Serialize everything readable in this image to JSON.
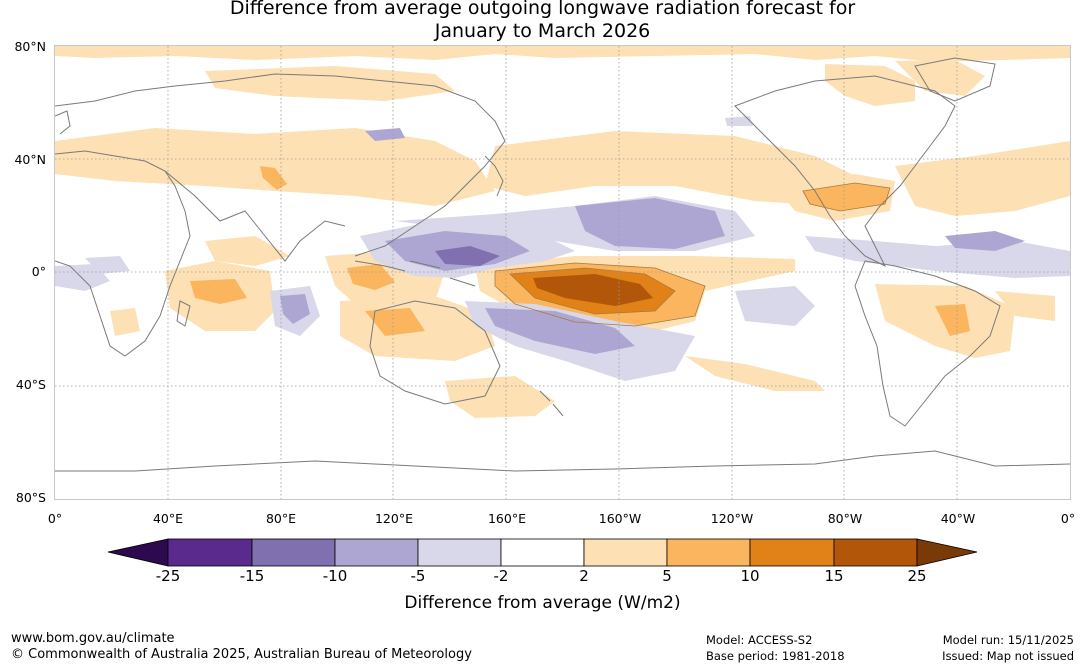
{
  "title": {
    "line1": "Difference from average outgoing longwave radiation forecast for",
    "line2": "January to March 2026"
  },
  "map": {
    "latitude_labels": [
      "80°N",
      "40°N",
      "0°",
      "40°S",
      "80°S"
    ],
    "longitude_labels": [
      "0°",
      "40°E",
      "80°E",
      "120°E",
      "160°E",
      "160°W",
      "120°W",
      "80°W",
      "40°W",
      "0°"
    ]
  },
  "colorbar": {
    "ticks": [
      "-25",
      "-15",
      "-10",
      "-5",
      "-2",
      "2",
      "5",
      "10",
      "15",
      "25"
    ],
    "colors": [
      "#2d0a4e",
      "#5a2a8c",
      "#8070b0",
      "#aea6d2",
      "#d8d8ea",
      "#ffffff",
      "#fde0b4",
      "#fbb55e",
      "#e08218",
      "#b2570a",
      "#7a3a08"
    ],
    "label": "Difference from average (W/m2)"
  },
  "footer": {
    "website": "www.bom.gov.au/climate",
    "copyright": "© Commonwealth of Australia 2025, Australian Bureau of Meteorology",
    "model": "Model: ACCESS-S2",
    "base_period": "Base period: 1981-2018",
    "model_run": "Model run: 15/11/2025",
    "issued": "Issued: Map not issued"
  }
}
